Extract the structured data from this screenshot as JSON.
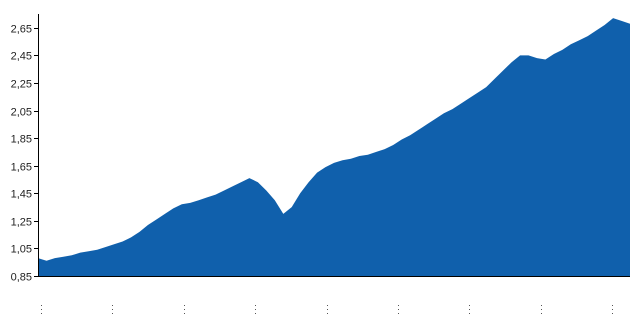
{
  "chart_data": {
    "type": "area",
    "title": "",
    "xlabel": "",
    "ylabel": "",
    "ylim": [
      0.85,
      2.75
    ],
    "y_ticks": [
      "0,85",
      "1,05",
      "1,25",
      "1,45",
      "1,65",
      "1,85",
      "2,05",
      "2,25",
      "2,45",
      "2,65"
    ],
    "y_tick_values": [
      0.85,
      1.05,
      1.25,
      1.45,
      1.65,
      1.85,
      2.05,
      2.25,
      2.45,
      2.65
    ],
    "x_tick_count": 9,
    "grid": false,
    "color": "#1060AC",
    "series": [
      {
        "values": [
          0.98,
          0.96,
          0.98,
          0.99,
          1.0,
          1.02,
          1.03,
          1.04,
          1.06,
          1.08,
          1.1,
          1.13,
          1.17,
          1.22,
          1.26,
          1.3,
          1.34,
          1.37,
          1.38,
          1.4,
          1.42,
          1.44,
          1.47,
          1.5,
          1.53,
          1.56,
          1.53,
          1.47,
          1.4,
          1.3,
          1.35,
          1.45,
          1.53,
          1.6,
          1.64,
          1.67,
          1.69,
          1.7,
          1.72,
          1.73,
          1.75,
          1.77,
          1.8,
          1.84,
          1.87,
          1.91,
          1.95,
          1.99,
          2.03,
          2.06,
          2.1,
          2.14,
          2.18,
          2.22,
          2.28,
          2.34,
          2.4,
          2.45,
          2.45,
          2.43,
          2.42,
          2.46,
          2.49,
          2.53,
          2.56,
          2.59,
          2.63,
          2.67,
          2.72,
          2.7,
          2.68
        ]
      }
    ]
  }
}
